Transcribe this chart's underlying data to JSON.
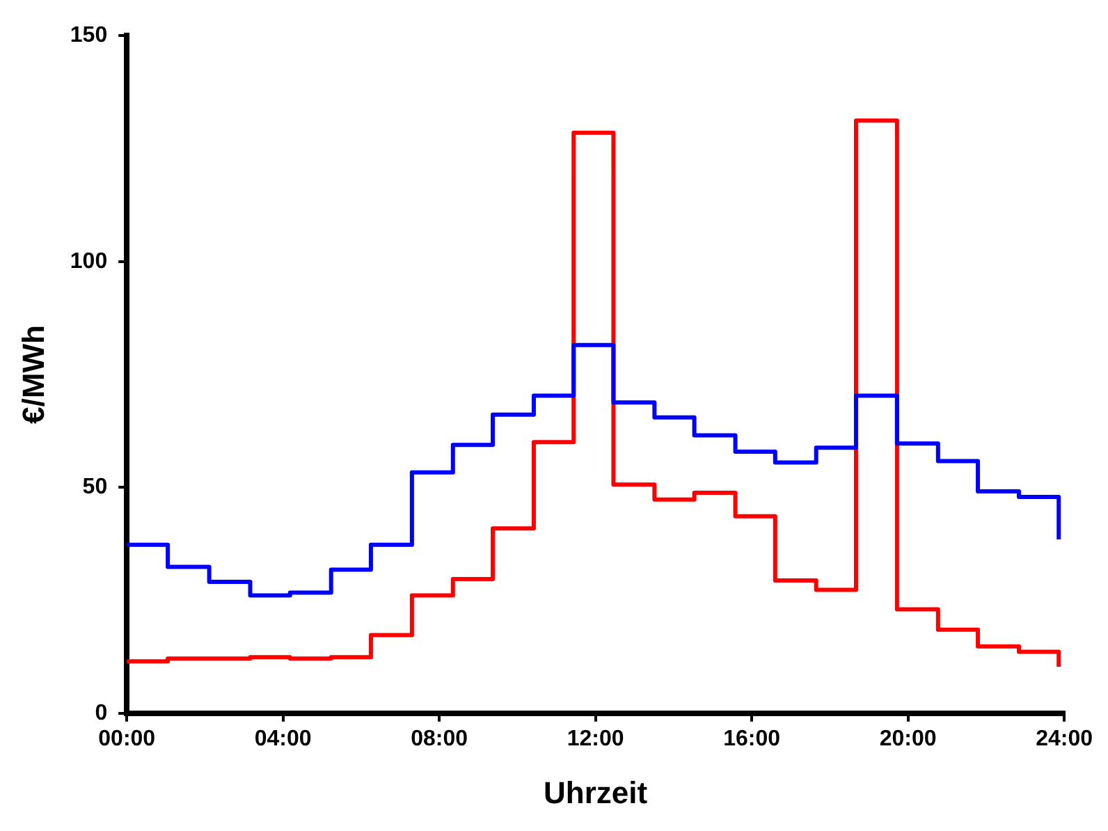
{
  "chart_data": {
    "type": "step",
    "xlabel": "Uhrzeit",
    "ylabel": "€/MWh",
    "x": [
      0,
      1.05,
      2.11,
      3.16,
      4.18,
      5.23,
      6.25,
      7.3,
      8.35,
      9.37,
      10.42,
      11.44,
      12.46,
      13.51,
      14.53,
      15.58,
      16.6,
      17.65,
      18.67,
      19.72,
      20.77,
      21.79,
      22.84,
      23.86
    ],
    "series": [
      {
        "color": "#0000ff",
        "values": [
          37.3,
          32.4,
          29.1,
          26.1,
          26.7,
          31.8,
          37.3,
          53.3,
          59.4,
          66.1,
          70.3,
          81.5,
          68.8,
          65.5,
          61.5,
          57.9,
          55.5,
          58.8,
          70.3,
          59.7,
          55.8,
          49.1,
          47.9,
          38.5
        ]
      },
      {
        "color": "#ff0000",
        "values": [
          11.5,
          12.1,
          12.1,
          12.4,
          12.1,
          12.4,
          17.3,
          26.1,
          29.7,
          40.9,
          60,
          128.5,
          50.6,
          47.3,
          48.8,
          43.6,
          29.4,
          27.3,
          131.2,
          23,
          18.5,
          14.8,
          13.6,
          10.3
        ]
      }
    ],
    "xlim": [
      0,
      24
    ],
    "ylim": [
      0,
      150
    ],
    "xticks": [
      {
        "value": 0,
        "label": "00:00"
      },
      {
        "value": 4,
        "label": "04:00"
      },
      {
        "value": 8,
        "label": "08:00"
      },
      {
        "value": 12,
        "label": "12:00"
      },
      {
        "value": 16,
        "label": "16:00"
      },
      {
        "value": 20,
        "label": "20:00"
      },
      {
        "value": 24,
        "label": "24:00"
      }
    ],
    "yticks": [
      0,
      50,
      100,
      150
    ],
    "grid": false,
    "legend": false,
    "line_style": "solid",
    "marker": "none"
  }
}
